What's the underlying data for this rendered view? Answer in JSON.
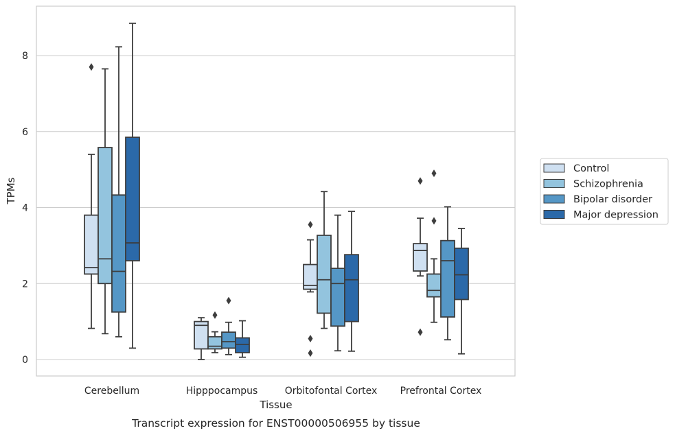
{
  "chart_data": {
    "type": "box",
    "title": "Transcript expression for ENST00000506955 by tissue",
    "xlabel": "Tissue",
    "ylabel": "TPMs",
    "ylim": [
      -0.4,
      9.3
    ],
    "yticks": [
      0,
      2,
      4,
      6,
      8
    ],
    "grid": "y",
    "legend_placement": "right",
    "categories": [
      "Cerebellum",
      "Hipppocampus",
      "Orbitofontal Cortex",
      "Prefrontal Cortex"
    ],
    "series": [
      {
        "name": "Control",
        "color": "#cfe0f1",
        "boxes": [
          {
            "whisker_low": 0.82,
            "q1": 2.25,
            "median": 2.42,
            "q3": 3.8,
            "whisker_high": 5.4,
            "outliers": [
              7.7
            ]
          },
          {
            "whisker_low": 0.0,
            "q1": 0.28,
            "median": 0.9,
            "q3": 1.0,
            "whisker_high": 1.1,
            "outliers": []
          },
          {
            "whisker_low": 1.78,
            "q1": 1.85,
            "median": 1.95,
            "q3": 2.5,
            "whisker_high": 3.15,
            "outliers": [
              3.55,
              0.55,
              0.17
            ]
          },
          {
            "whisker_low": 2.2,
            "q1": 2.33,
            "median": 2.87,
            "q3": 3.05,
            "whisker_high": 3.72,
            "outliers": [
              4.7,
              0.72
            ]
          }
        ]
      },
      {
        "name": "Schizophrenia",
        "color": "#93c4de",
        "boxes": [
          {
            "whisker_low": 0.68,
            "q1": 2.0,
            "median": 2.65,
            "q3": 5.58,
            "whisker_high": 7.65,
            "outliers": []
          },
          {
            "whisker_low": 0.18,
            "q1": 0.28,
            "median": 0.35,
            "q3": 0.6,
            "whisker_high": 0.73,
            "outliers": [
              1.17
            ]
          },
          {
            "whisker_low": 0.82,
            "q1": 1.22,
            "median": 2.1,
            "q3": 3.27,
            "whisker_high": 4.42,
            "outliers": []
          },
          {
            "whisker_low": 0.98,
            "q1": 1.65,
            "median": 1.82,
            "q3": 2.25,
            "whisker_high": 2.65,
            "outliers": [
              3.65,
              4.9
            ]
          }
        ]
      },
      {
        "name": "Bipolar disorder",
        "color": "#5597c6",
        "boxes": [
          {
            "whisker_low": 0.6,
            "q1": 1.25,
            "median": 2.32,
            "q3": 4.33,
            "whisker_high": 8.23,
            "outliers": []
          },
          {
            "whisker_low": 0.13,
            "q1": 0.3,
            "median": 0.47,
            "q3": 0.72,
            "whisker_high": 0.98,
            "outliers": [
              1.55
            ]
          },
          {
            "whisker_low": 0.23,
            "q1": 0.88,
            "median": 2.0,
            "q3": 2.4,
            "whisker_high": 3.8,
            "outliers": []
          },
          {
            "whisker_low": 0.52,
            "q1": 1.12,
            "median": 2.6,
            "q3": 3.13,
            "whisker_high": 4.02,
            "outliers": []
          }
        ]
      },
      {
        "name": "Major depression",
        "color": "#2b69a9",
        "boxes": [
          {
            "whisker_low": 0.3,
            "q1": 2.6,
            "median": 3.07,
            "q3": 5.85,
            "whisker_high": 8.85,
            "outliers": []
          },
          {
            "whisker_low": 0.06,
            "q1": 0.18,
            "median": 0.4,
            "q3": 0.57,
            "whisker_high": 1.02,
            "outliers": []
          },
          {
            "whisker_low": 0.22,
            "q1": 1.0,
            "median": 2.1,
            "q3": 2.76,
            "whisker_high": 3.9,
            "outliers": []
          },
          {
            "whisker_low": 0.15,
            "q1": 1.58,
            "median": 2.23,
            "q3": 2.93,
            "whisker_high": 3.45,
            "outliers": []
          }
        ]
      }
    ]
  },
  "colors": {
    "grid": "#cccccc",
    "frame": "#cccccc",
    "box_line": "#3d3d3d",
    "background": "#ffffff"
  }
}
